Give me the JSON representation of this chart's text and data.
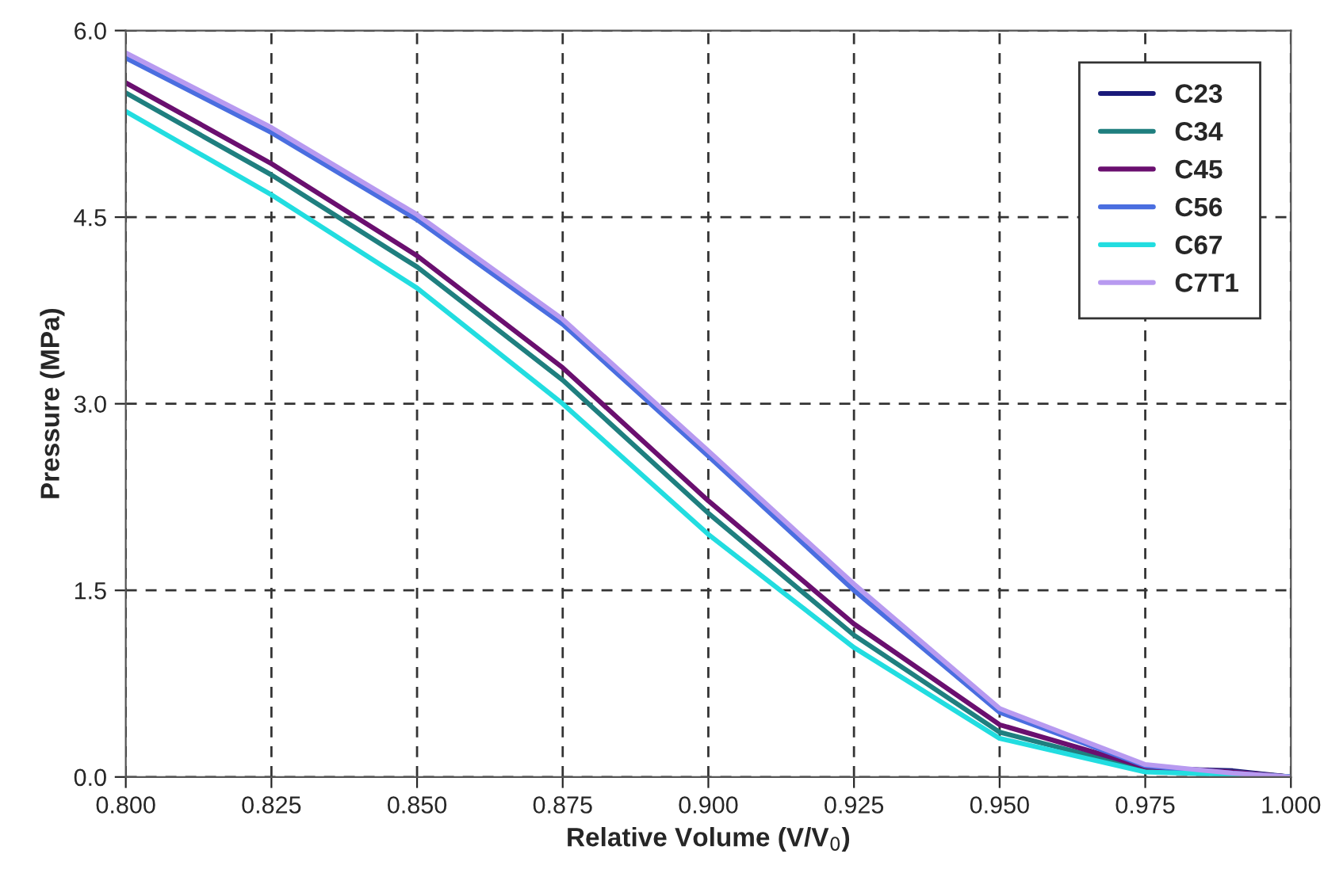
{
  "chart_data": {
    "type": "line",
    "xlabel": "Relative Volume (V/V$_{0}$)",
    "ylabel": "Pressure (MPa)",
    "x": [
      0.8,
      0.825,
      0.85,
      0.875,
      0.9,
      0.925,
      0.95,
      0.975,
      0.99,
      1.0
    ],
    "series": [
      {
        "name": "C23",
        "color": "#1a1a7a",
        "values": [
          null,
          null,
          null,
          null,
          null,
          null,
          null,
          0.07,
          0.05,
          0
        ]
      },
      {
        "name": "C34",
        "color": "#1f7f7f",
        "values": [
          5.5,
          4.84,
          4.1,
          3.19,
          2.12,
          1.14,
          0.36,
          0.06,
          0.04,
          0
        ]
      },
      {
        "name": "C45",
        "color": "#6a0f6f",
        "values": [
          5.58,
          4.93,
          4.19,
          3.29,
          2.22,
          1.23,
          0.42,
          0.08,
          0.04,
          0
        ]
      },
      {
        "name": "C56",
        "color": "#4a6ee0",
        "values": [
          5.78,
          5.18,
          4.48,
          3.64,
          2.58,
          1.5,
          0.52,
          0.09,
          0.03,
          0
        ]
      },
      {
        "name": "C67",
        "color": "#22dde0",
        "values": [
          5.35,
          4.68,
          3.93,
          3.0,
          1.95,
          1.04,
          0.31,
          0.04,
          0.02,
          0
        ]
      },
      {
        "name": "C7T1",
        "color": "#b89af0",
        "values": [
          5.82,
          5.22,
          4.52,
          3.68,
          2.62,
          1.55,
          0.55,
          0.1,
          0.03,
          0
        ]
      }
    ],
    "xlim": [
      0.8,
      1.0
    ],
    "xticks": [
      {
        "value": 0.8,
        "label": "0.800"
      },
      {
        "value": 0.825,
        "label": "0.825"
      },
      {
        "value": 0.85,
        "label": "0.850"
      },
      {
        "value": 0.875,
        "label": "0.875"
      },
      {
        "value": 0.9,
        "label": "0.900"
      },
      {
        "value": 0.925,
        "label": "0.925"
      },
      {
        "value": 0.95,
        "label": "0.950"
      },
      {
        "value": 0.975,
        "label": "0.975"
      },
      {
        "value": 1.0,
        "label": "1.000"
      }
    ],
    "ylim": [
      0,
      6
    ],
    "yticks": [
      {
        "value": 0,
        "label": "0.0"
      },
      {
        "value": 1.5,
        "label": "1.5"
      },
      {
        "value": 3,
        "label": "3.0"
      },
      {
        "value": 4.5,
        "label": "4.5"
      },
      {
        "value": 6,
        "label": "6.0"
      }
    ],
    "grid": true,
    "legend": "top right",
    "line_style": "solid",
    "marker": "none"
  }
}
